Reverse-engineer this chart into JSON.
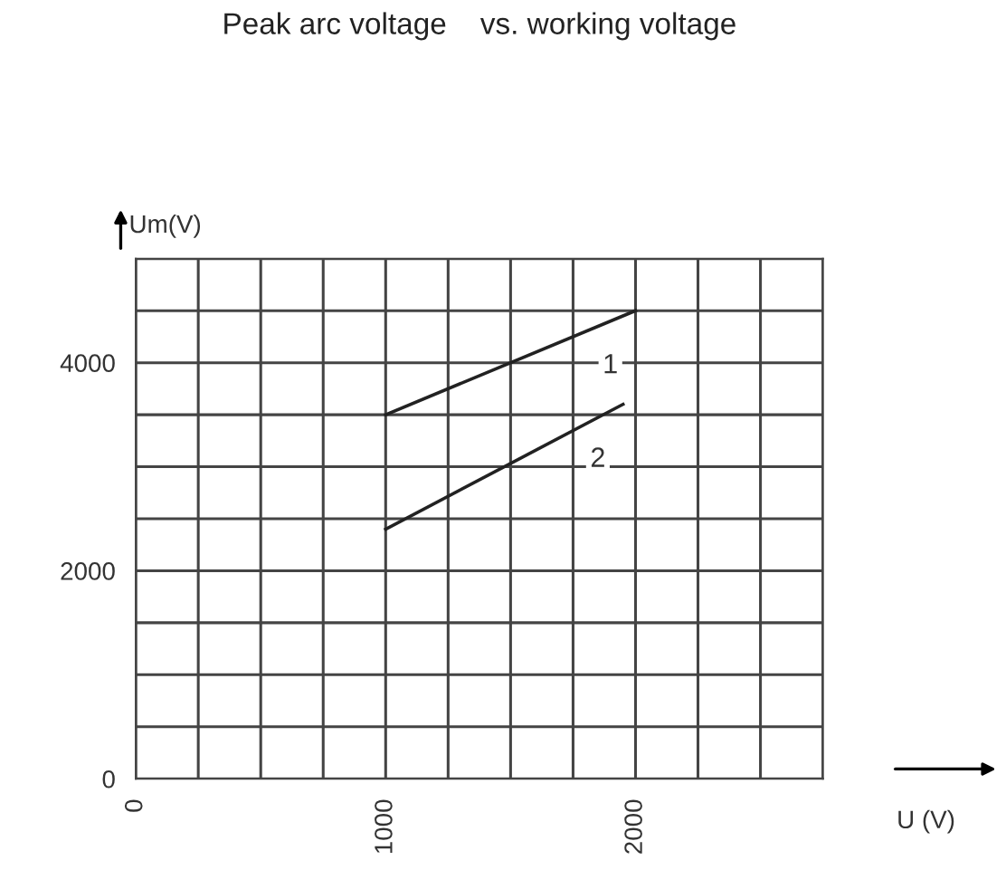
{
  "chart_data": {
    "type": "line",
    "title": "Peak arc voltage    vs. working voltage",
    "xlabel": "U (V)",
    "ylabel": "Um(V)",
    "series": [
      {
        "name": "1",
        "color": "#222222",
        "x": [
          1000,
          2000
        ],
        "values": [
          3500,
          4500
        ]
      },
      {
        "name": "2",
        "color": "#222222",
        "x": [
          1000,
          1950
        ],
        "values": [
          2400,
          3600
        ]
      }
    ],
    "xlim": [
      0,
      2750
    ],
    "ylim": [
      0,
      5000
    ],
    "xticks": [
      0,
      {
        "value": 250,
        "label": null
      },
      {
        "value": 500,
        "label": null
      },
      {
        "value": 750,
        "label": null
      },
      1000,
      {
        "value": 1250,
        "label": null
      },
      {
        "value": 1500,
        "label": null
      },
      {
        "value": 1750,
        "label": null
      },
      2000,
      {
        "value": 2250,
        "label": null
      },
      {
        "value": 2500,
        "label": null
      },
      {
        "value": 2750,
        "label": null
      }
    ],
    "yticks": [
      0,
      {
        "value": 500,
        "label": null
      },
      {
        "value": 1000,
        "label": null
      },
      {
        "value": 1500,
        "label": null
      },
      2000,
      {
        "value": 2500,
        "label": null
      },
      {
        "value": 3000,
        "label": null
      },
      {
        "value": 3500,
        "label": null
      },
      4000,
      {
        "value": 4500,
        "label": null
      },
      {
        "value": 5000,
        "label": null
      }
    ],
    "grid": true,
    "legend": false,
    "marker": "none",
    "line_style": "solid"
  }
}
